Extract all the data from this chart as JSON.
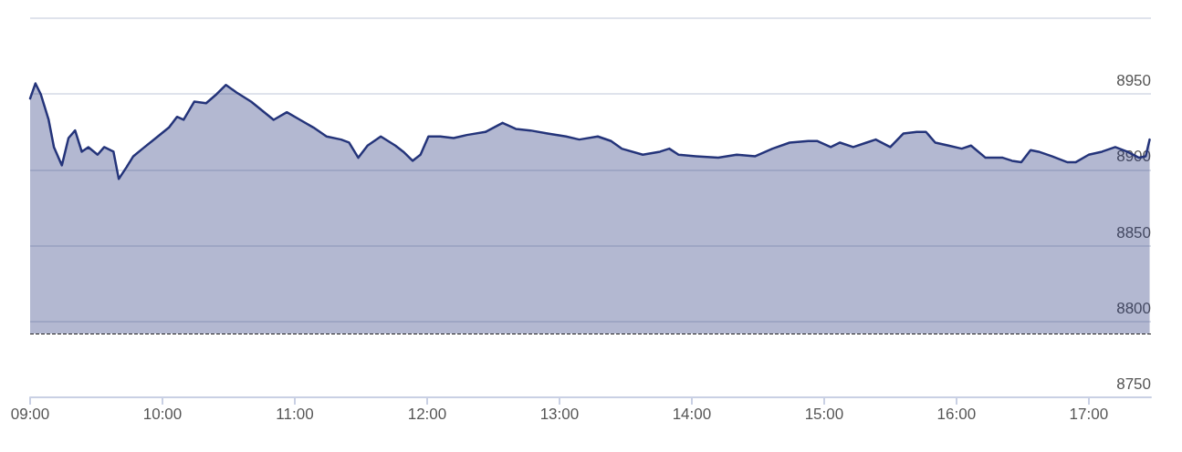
{
  "chart_data": {
    "type": "area",
    "x": [
      9.0,
      9.04,
      9.08,
      9.14,
      9.18,
      9.24,
      9.29,
      9.34,
      9.39,
      9.44,
      9.51,
      9.56,
      9.63,
      9.67,
      9.73,
      9.78,
      9.85,
      9.95,
      10.05,
      10.11,
      10.16,
      10.24,
      10.33,
      10.41,
      10.48,
      10.56,
      10.67,
      10.77,
      10.84,
      10.94,
      11.04,
      11.14,
      11.24,
      11.35,
      11.41,
      11.48,
      11.55,
      11.65,
      11.76,
      11.82,
      11.89,
      11.95,
      12.01,
      12.1,
      12.2,
      12.3,
      12.44,
      12.57,
      12.67,
      12.78,
      12.91,
      13.05,
      13.15,
      13.29,
      13.39,
      13.47,
      13.63,
      13.76,
      13.83,
      13.9,
      14.03,
      14.2,
      14.34,
      14.48,
      14.61,
      14.74,
      14.88,
      14.95,
      15.05,
      15.12,
      15.22,
      15.32,
      15.39,
      15.5,
      15.6,
      15.7,
      15.77,
      15.84,
      15.94,
      16.04,
      16.11,
      16.22,
      16.35,
      16.42,
      16.49,
      16.56,
      16.62,
      16.72,
      16.84,
      16.9,
      17.0,
      17.1,
      17.2,
      17.29,
      17.38,
      17.43,
      17.46
    ],
    "series": [
      {
        "color": "#24347a",
        "values": [
          8947,
          8957,
          8950,
          8933,
          8915,
          8903,
          8921,
          8926,
          8912,
          8915,
          8910,
          8915,
          8912,
          8894,
          8902,
          8909,
          8914,
          8921,
          8928,
          8935,
          8933,
          8945,
          8944,
          8950,
          8956,
          8951,
          8945,
          8938,
          8933,
          8938,
          8933,
          8928,
          8922,
          8920,
          8918,
          8908,
          8916,
          8922,
          8916,
          8912,
          8906,
          8910,
          8922,
          8922,
          8921,
          8923,
          8925,
          8931,
          8927,
          8926,
          8924,
          8922,
          8920,
          8922,
          8919,
          8914,
          8910,
          8912,
          8914,
          8910,
          8909,
          8908,
          8910,
          8909,
          8914,
          8918,
          8919,
          8919,
          8915,
          8918,
          8915,
          8918,
          8920,
          8915,
          8924,
          8925,
          8925,
          8918,
          8916,
          8914,
          8916,
          8908,
          8908,
          8906,
          8905,
          8913,
          8912,
          8909,
          8905,
          8905,
          8910,
          8912,
          8915,
          8912,
          8908,
          8909,
          8920
        ]
      }
    ],
    "xlim": [
      9,
      17.47
    ],
    "xticks": [
      {
        "value": 9,
        "label": "09:00"
      },
      {
        "value": 10,
        "label": "10:00"
      },
      {
        "value": 11,
        "label": "11:00"
      },
      {
        "value": 12,
        "label": "12:00"
      },
      {
        "value": 13,
        "label": "13:00"
      },
      {
        "value": 14,
        "label": "14:00"
      },
      {
        "value": 15,
        "label": "15:00"
      },
      {
        "value": 16,
        "label": "16:00"
      },
      {
        "value": 17,
        "label": "17:00"
      }
    ],
    "ylim": [
      8750,
      9000
    ],
    "yticks": [
      8750,
      8800,
      8850,
      8900,
      8950,
      {
        "value": 9000,
        "label": null
      }
    ],
    "ref_lines": [
      {
        "axis": "y",
        "value": 8792,
        "color": "#222222",
        "line_style": "dashed"
      }
    ],
    "grid": "y",
    "marker": "none",
    "line_style": "solid"
  }
}
